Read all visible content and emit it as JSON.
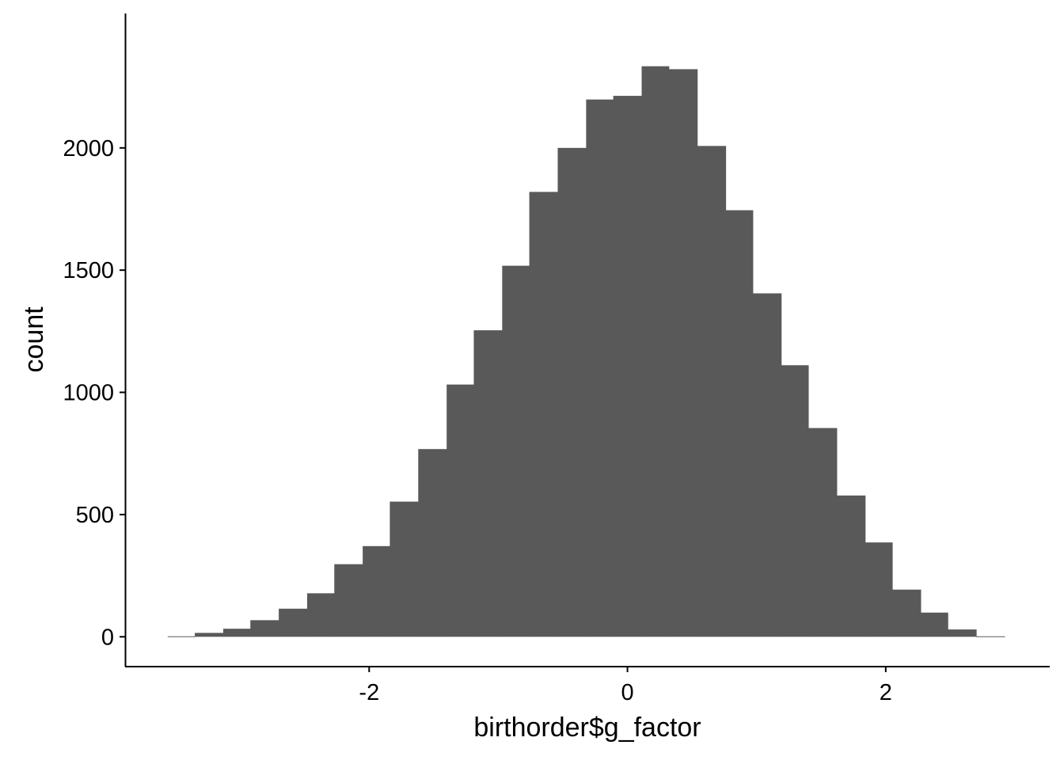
{
  "chart_data": {
    "type": "bar",
    "title": "",
    "xlabel": "birthorder$g_factor",
    "ylabel": "count",
    "xlim": [
      -3.89,
      3.27
    ],
    "ylim": [
      -122,
      2550
    ],
    "xticks": [
      -2,
      0,
      2
    ],
    "xtick_labels": [
      "-2",
      "0",
      "2"
    ],
    "yticks": [
      0,
      500,
      1000,
      1500,
      2000
    ],
    "ytick_labels": [
      "0",
      "500",
      "1000",
      "1500",
      "2000"
    ],
    "grid": false,
    "legend": "none",
    "fill_color": "#595959",
    "bins": [
      {
        "x0": -3.56,
        "x1": -3.35,
        "count": 2
      },
      {
        "x0": -3.35,
        "x1": -3.13,
        "count": 16
      },
      {
        "x0": -3.13,
        "x1": -2.92,
        "count": 33
      },
      {
        "x0": -2.92,
        "x1": -2.7,
        "count": 68
      },
      {
        "x0": -2.7,
        "x1": -2.48,
        "count": 115
      },
      {
        "x0": -2.48,
        "x1": -2.27,
        "count": 178
      },
      {
        "x0": -2.27,
        "x1": -2.05,
        "count": 297
      },
      {
        "x0": -2.05,
        "x1": -1.84,
        "count": 371
      },
      {
        "x0": -1.84,
        "x1": -1.62,
        "count": 553
      },
      {
        "x0": -1.62,
        "x1": -1.4,
        "count": 768
      },
      {
        "x0": -1.4,
        "x1": -1.19,
        "count": 1032
      },
      {
        "x0": -1.19,
        "x1": -0.97,
        "count": 1254
      },
      {
        "x0": -0.97,
        "x1": -0.76,
        "count": 1518
      },
      {
        "x0": -0.76,
        "x1": -0.54,
        "count": 1820
      },
      {
        "x0": -0.54,
        "x1": -0.32,
        "count": 2000
      },
      {
        "x0": -0.32,
        "x1": -0.11,
        "count": 2198
      },
      {
        "x0": -0.11,
        "x1": 0.11,
        "count": 2213
      },
      {
        "x0": 0.11,
        "x1": 0.32,
        "count": 2334
      },
      {
        "x0": 0.32,
        "x1": 0.54,
        "count": 2322
      },
      {
        "x0": 0.54,
        "x1": 0.76,
        "count": 2008
      },
      {
        "x0": 0.76,
        "x1": 0.97,
        "count": 1745
      },
      {
        "x0": 0.97,
        "x1": 1.19,
        "count": 1405
      },
      {
        "x0": 1.19,
        "x1": 1.4,
        "count": 1111
      },
      {
        "x0": 1.4,
        "x1": 1.62,
        "count": 854
      },
      {
        "x0": 1.62,
        "x1": 1.84,
        "count": 578
      },
      {
        "x0": 1.84,
        "x1": 2.05,
        "count": 386
      },
      {
        "x0": 2.05,
        "x1": 2.27,
        "count": 193
      },
      {
        "x0": 2.27,
        "x1": 2.48,
        "count": 99
      },
      {
        "x0": 2.48,
        "x1": 2.7,
        "count": 30
      },
      {
        "x0": 2.7,
        "x1": 2.92,
        "count": 2
      }
    ]
  }
}
